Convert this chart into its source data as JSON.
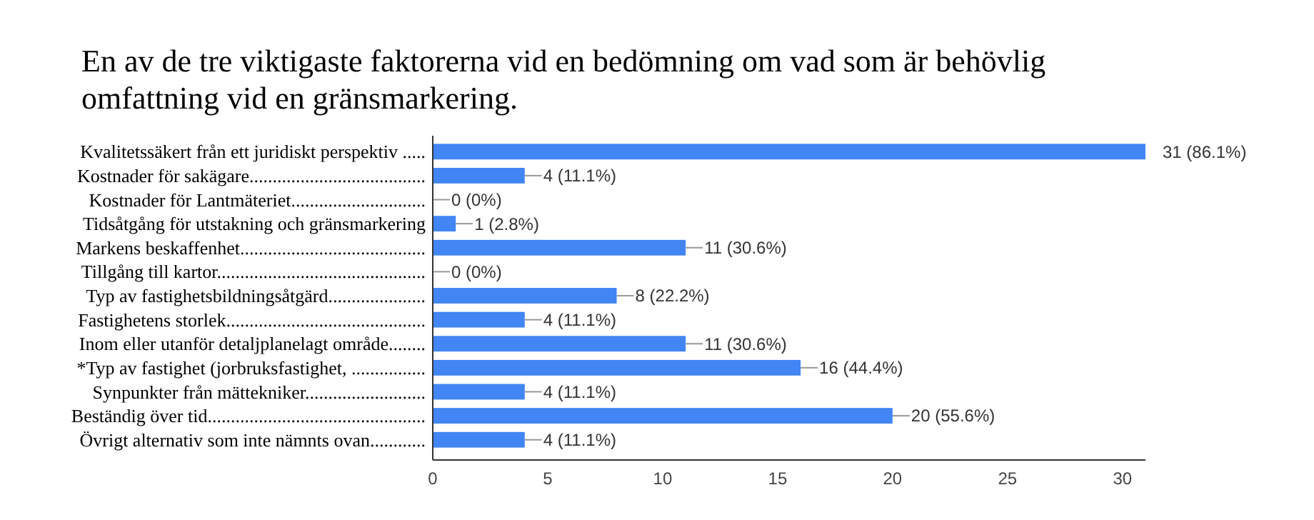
{
  "chart_data": {
    "type": "bar",
    "orientation": "horizontal",
    "title": "En av de tre viktigaste faktorerna vid en bedömning om vad som är behövlig omfattning vid en gränsmarkering.",
    "categories": [
      "Kvalitetssäkert från ett juridiskt perspektiv .....",
      "Kostnader för sakägare......................................",
      "Kostnader för Lantmäteriet.............................",
      "Tidsåtgång för utstakning och gränsmarkering",
      "Markens beskaffenhet........................................",
      "Tillgång till kartor.............................................",
      "Typ av fastighetsbildningsåtgärd.....................",
      "Fastighetens storlek...........................................",
      "Inom eller utanför detaljplanelagt område........",
      "*Typ av fastighet (jorbruksfastighet, ................",
      "Synpunkter från mättekniker..........................",
      "Beständig över tid...............................................",
      "Övrigt alternativ som inte nämnts ovan............"
    ],
    "values": [
      31,
      4,
      0,
      1,
      11,
      0,
      8,
      4,
      11,
      16,
      4,
      20,
      4
    ],
    "value_labels": [
      "31 (86.1%)",
      "4 (11.1%)",
      "0 (0%)",
      "1 (2.8%)",
      "11 (30.6%)",
      "0 (0%)",
      "8 (22.2%)",
      "4 (11.1%)",
      "11 (30.6%)",
      "16 (44.4%)",
      "4 (11.1%)",
      "20 (55.6%)",
      "4 (11.1%)"
    ],
    "color": "#4285f4",
    "xlim": [
      0,
      31
    ],
    "xticks": [
      0,
      5,
      10,
      15,
      20,
      25,
      30
    ],
    "grid": false
  }
}
